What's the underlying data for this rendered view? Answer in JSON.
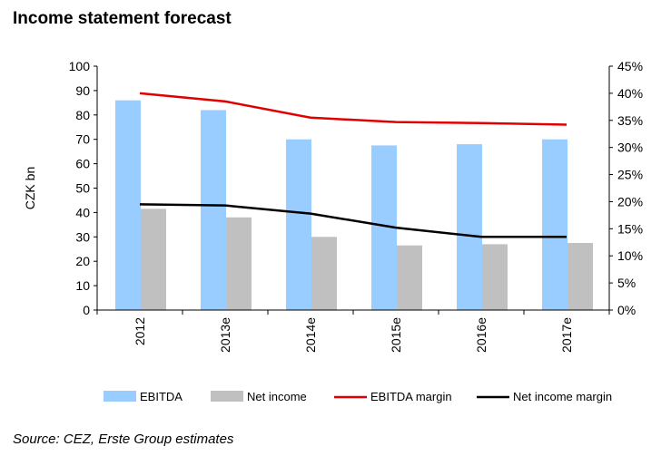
{
  "title": "Income statement forecast",
  "source": "Source: CEZ, Erste Group estimates",
  "chart_data": {
    "type": "bar",
    "categories": [
      "2012",
      "2013e",
      "2014e",
      "2015e",
      "2016e",
      "2017e"
    ],
    "ylabel": "CZK bn",
    "ylim": [
      0,
      100
    ],
    "yticks": [
      "0",
      "10",
      "20",
      "30",
      "40",
      "50",
      "60",
      "70",
      "80",
      "90",
      "100"
    ],
    "y2lim": [
      0,
      45
    ],
    "y2ticks": [
      "0%",
      "5%",
      "10%",
      "15%",
      "20%",
      "25%",
      "30%",
      "35%",
      "40%",
      "45%"
    ],
    "series": [
      {
        "name": "EBITDA",
        "type": "bar",
        "axis": "left",
        "color": "#99ccff",
        "values": [
          86,
          82,
          70,
          67.5,
          68,
          70
        ]
      },
      {
        "name": "Net income",
        "type": "bar",
        "axis": "left",
        "color": "#c0c0c0",
        "values": [
          41.5,
          38,
          30,
          26.5,
          27,
          27.5
        ]
      },
      {
        "name": "EBITDA margin",
        "type": "line",
        "axis": "right",
        "color": "#e00000",
        "values": [
          40,
          38.5,
          35.5,
          34.7,
          34.5,
          34.2
        ]
      },
      {
        "name": "Net income margin",
        "type": "line",
        "axis": "right",
        "color": "#000000",
        "values": [
          19.5,
          19.3,
          17.8,
          15.2,
          13.5,
          13.5
        ]
      }
    ],
    "legend_position": "bottom",
    "grid": false
  }
}
